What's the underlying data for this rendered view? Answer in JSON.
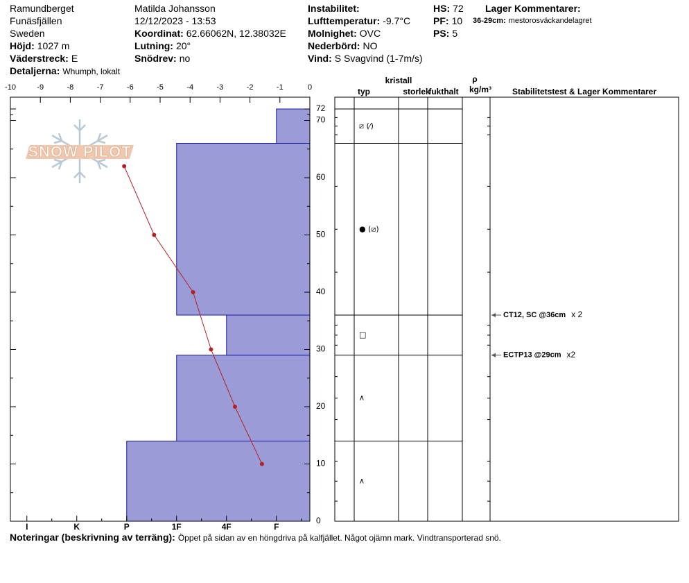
{
  "header": {
    "columns": [
      [
        {
          "text": "Ramundberget"
        },
        {
          "text": "Funäsfjällen"
        },
        {
          "text": "Sweden"
        },
        {
          "label": "Höjd:",
          "value": "1027 m"
        },
        {
          "label": "Väderstreck:",
          "value": "E"
        },
        {
          "label": "Detaljerna:",
          "value": "Whumph, lokalt"
        }
      ],
      [
        {
          "text": "Matilda Johansson"
        },
        {
          "text": "12/12/2023 - 13:53"
        },
        {
          "label": "Koordinat:",
          "value": "62.66062N, 12.38032E"
        },
        {
          "label": "Lutning:",
          "value": "20°"
        },
        {
          "label": "Snödrev:",
          "value": "no"
        }
      ],
      [
        {
          "label": "Instabilitet:"
        },
        {
          "label": "Lufttemperatur:",
          "value": "-9.7°C"
        },
        {
          "label": "Molnighet:",
          "value": "OVC"
        },
        {
          "label": "Nederbörd:",
          "value": "NO"
        },
        {
          "label": "Vind:",
          "value": "S Svagvind (1-7m/s)"
        }
      ],
      [
        {
          "label": "HS:",
          "value": "72"
        },
        {
          "label": "PF:",
          "value": "10"
        },
        {
          "label": "PS:",
          "value": "5"
        }
      ],
      [
        {
          "label": "Lager Kommentarer:"
        },
        {
          "label": "36-29cm:",
          "value": "mestorosväckandelagret"
        }
      ]
    ]
  },
  "footer": {
    "label": "Noteringar (beskrivning av terräng):",
    "value": "Öppet på sidan av en höngdriva på kalfjället. Något ojämn mark. Vindtransporterad snö."
  },
  "logo": "SNOW PILOT",
  "chart_data": {
    "type": "snow-profile",
    "ylim": [
      0,
      72
    ],
    "yticks": [
      0,
      10,
      20,
      30,
      40,
      50,
      60,
      70,
      72
    ],
    "xlim": [
      -10,
      0
    ],
    "xticks": [
      -10,
      -9,
      -8,
      -7,
      -6,
      -5,
      -4,
      -3,
      -2,
      -1,
      0
    ],
    "hardness_lim": [
      0,
      6
    ],
    "hardness_ticks": [
      {
        "value": 5.67,
        "label": "I"
      },
      {
        "value": 4.67,
        "label": "K"
      },
      {
        "value": 3.67,
        "label": "P"
      },
      {
        "value": 2.67,
        "label": "1F"
      },
      {
        "value": 1.67,
        "label": "4F"
      },
      {
        "value": 0.67,
        "label": "F"
      }
    ],
    "bar_color": "#9b9bd7",
    "temperature": {
      "color": "#b22222",
      "heights": [
        62,
        50,
        40,
        30,
        20,
        10
      ],
      "values": [
        -6.2,
        -5.2,
        -3.9,
        -3.3,
        -2.5,
        -1.6
      ]
    },
    "layers": [
      {
        "top": 72,
        "bottom": 66,
        "hardness": 0.67,
        "grain": "⧄ (⁄)"
      },
      {
        "top": 66,
        "bottom": 36,
        "hardness": 2.67,
        "grain": "● (⧄)"
      },
      {
        "top": 36,
        "bottom": 29,
        "hardness": 1.67,
        "grain": "□"
      },
      {
        "top": 29,
        "bottom": 14,
        "hardness": 2.67,
        "grain": "∧"
      },
      {
        "top": 14,
        "bottom": 0,
        "hardness": 3.67,
        "grain": "∧"
      }
    ],
    "table_headers": {
      "typ": "typ",
      "kristall": "kristall",
      "storlek": "storlek",
      "fukthalt": "fukthalt",
      "rho": "ρ",
      "density_unit": "kg/m³",
      "comments": "Stabilitetstest & Lager Kommentarer"
    },
    "stability_tests": [
      {
        "height": 36,
        "text": "CT12, SC @36cm",
        "count": "x 2"
      },
      {
        "height": 29,
        "text": "ECTP13 @29cm",
        "count": "x2"
      }
    ]
  }
}
